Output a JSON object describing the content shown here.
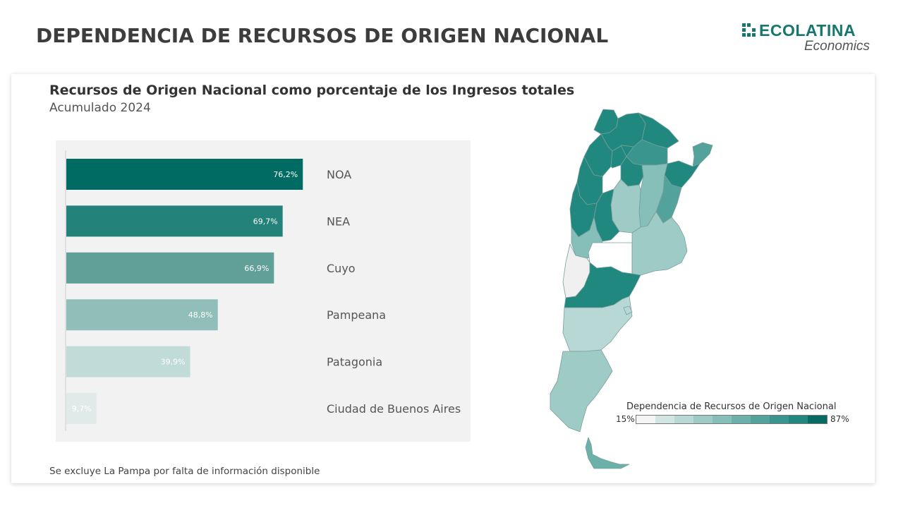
{
  "page": {
    "title": "DEPENDENCIA DE RECURSOS DE ORIGEN NACIONAL",
    "logo_name": "ECOLATINA",
    "logo_sub": "Economics",
    "footnote": "Se excluye La Pampa por falta de información disponible"
  },
  "chart_data": [
    {
      "type": "bar",
      "orientation": "horizontal",
      "title": "Recursos de Origen Nacional como porcentaje de los Ingresos totales",
      "subtitle": "Acumulado 2024",
      "categories": [
        "NOA",
        "NEA",
        "Cuyo",
        "Pampeana",
        "Patagonia",
        "Ciudad de Buenos Aires"
      ],
      "values": [
        76.2,
        69.7,
        66.9,
        48.8,
        39.9,
        9.7
      ],
      "value_labels": [
        "76,2%",
        "69,7%",
        "66,9%",
        "48,8%",
        "39,9%",
        "9,7%"
      ],
      "colors": [
        "#006b63",
        "#23837b",
        "#619f99",
        "#91beb9",
        "#c1dbd8",
        "#e0ebe9"
      ],
      "xlim": [
        0,
        100
      ],
      "grid": false
    },
    {
      "type": "choropleth",
      "region": "Argentina",
      "legend_title": "Dependencia de Recursos de Origen Nacional",
      "legend_min": "15%",
      "legend_max": "87%",
      "scale_colors": [
        "#f5f5f5",
        "#d1e5e3",
        "#b8d8d5",
        "#9fcbc7",
        "#86beb9",
        "#6cb0aa",
        "#53a39c",
        "#3a958e",
        "#21887f",
        "#086b63"
      ]
    }
  ]
}
